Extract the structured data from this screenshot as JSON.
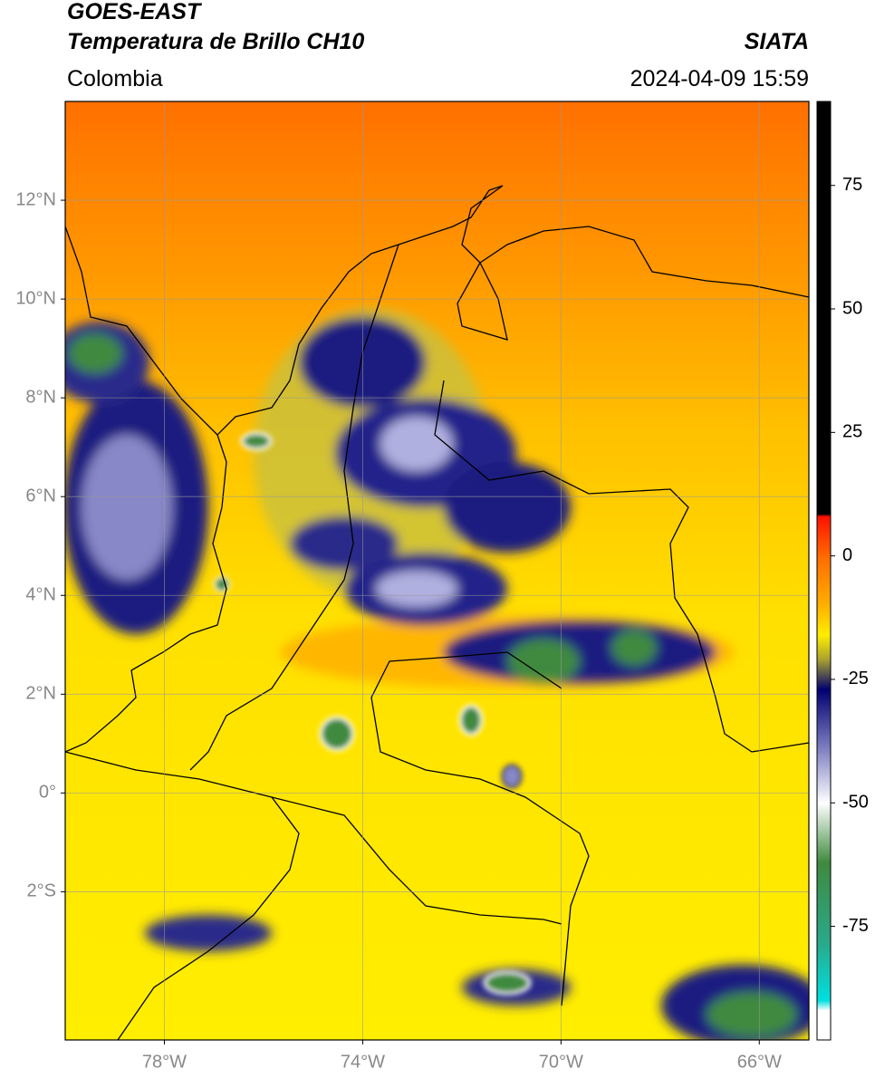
{
  "header": {
    "title": "GOES-EAST",
    "subtitle": "Temperatura de Brillo CH10",
    "source": "SIATA",
    "region": "Colombia",
    "datetime": "2024-04-09 15:59"
  },
  "map": {
    "xlim": [
      -80,
      -65
    ],
    "ylim": [
      -5,
      14
    ],
    "xticks": [
      {
        "value": -78,
        "label": "78°W"
      },
      {
        "value": -74,
        "label": "74°W"
      },
      {
        "value": -70,
        "label": "70°W"
      },
      {
        "value": -66,
        "label": "66°W"
      }
    ],
    "yticks": [
      {
        "value": 12,
        "label": "12°N"
      },
      {
        "value": 10,
        "label": "10°N"
      },
      {
        "value": 8,
        "label": "8°N"
      },
      {
        "value": 6,
        "label": "6°N"
      },
      {
        "value": 4,
        "label": "4°N"
      },
      {
        "value": 2,
        "label": "2°N"
      },
      {
        "value": 0,
        "label": "0°"
      },
      {
        "value": -2,
        "label": "2°S"
      }
    ],
    "grid": true
  },
  "colorbar": {
    "lim": [
      -98,
      92
    ],
    "ticks": [
      75,
      50,
      25,
      0,
      -25,
      -50,
      -75
    ],
    "stops": [
      {
        "value": 92,
        "color": "#000000"
      },
      {
        "value": 8.5,
        "color": "#000000"
      },
      {
        "value": 8,
        "color": "#ff1000"
      },
      {
        "value": 0,
        "color": "#ff6a00"
      },
      {
        "value": -10,
        "color": "#ffb000"
      },
      {
        "value": -16,
        "color": "#ffee00"
      },
      {
        "value": -21,
        "color": "#a8a030"
      },
      {
        "value": -27,
        "color": "#000070"
      },
      {
        "value": -40,
        "color": "#8a8ac8"
      },
      {
        "value": -50,
        "color": "#ffffff"
      },
      {
        "value": -62,
        "color": "#3f8a3f"
      },
      {
        "value": -78,
        "color": "#2aa888"
      },
      {
        "value": -90,
        "color": "#00e0e0"
      },
      {
        "value": -92,
        "color": "#ffffff"
      },
      {
        "value": -98,
        "color": "#ffffff"
      }
    ]
  }
}
